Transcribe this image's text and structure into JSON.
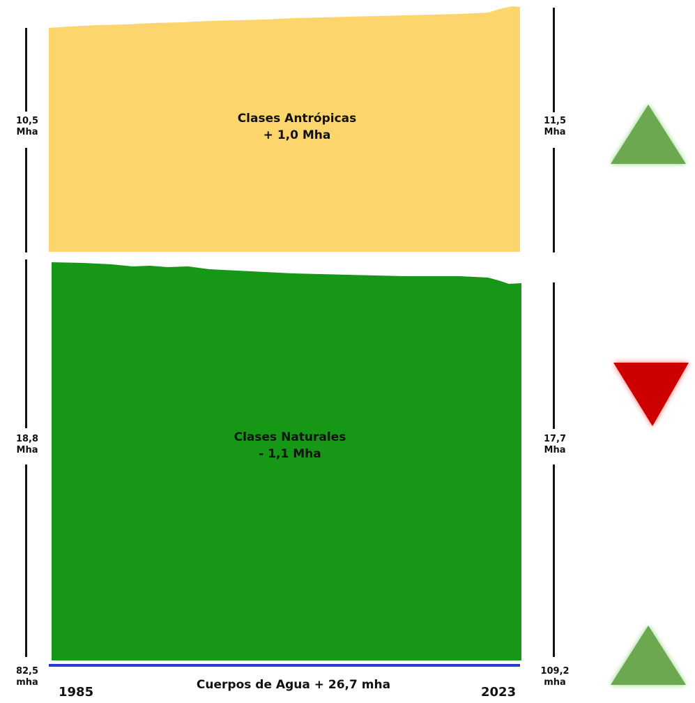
{
  "chart_data": {
    "type": "area",
    "x": [
      1985,
      2023
    ],
    "series": [
      {
        "name": "Clases Antrópicas",
        "start_label": "10,5\nMha",
        "end_label": "11,5\nMha",
        "values": [
          10.5,
          11.5
        ],
        "unit": "Mha",
        "change": "+ 1,0 Mha",
        "trend": "up",
        "color": "#fcd66c",
        "arrow_color": "#6ba84f"
      },
      {
        "name": "Clases Naturales",
        "start_label": "18,8\nMha",
        "end_label": "17,7\nMha",
        "values": [
          18.8,
          17.7
        ],
        "unit": "Mha",
        "change": "- 1,1 Mha",
        "trend": "down",
        "color": "#169816",
        "arrow_color": "#cc0000"
      },
      {
        "name": "Cuerpos de Agua",
        "start_label": "82,5\nmha",
        "end_label": "109,2\nmha",
        "values": [
          82.5,
          109.2
        ],
        "unit": "mha",
        "change": "+ 26,7 mha",
        "trend": "up",
        "color": "#2a3bcc",
        "arrow_color": "#6ba84f"
      }
    ]
  },
  "labels": {
    "antropicas_title": "Clases Antrópicas",
    "antropicas_change": "+ 1,0 Mha",
    "naturales_title": "Clases Naturales",
    "naturales_change": "- 1,1 Mha",
    "agua_caption": "Cuerpos de Agua + 26,7 mha",
    "left_antropicas": "10,5\nMha",
    "right_antropicas": "11,5\nMha",
    "left_naturales": "18,8\nMha",
    "right_naturales": "17,7\nMha",
    "left_agua": "82,5\nmha",
    "right_agua": "109,2\nmha",
    "year_start": "1985",
    "year_end": "2023"
  }
}
